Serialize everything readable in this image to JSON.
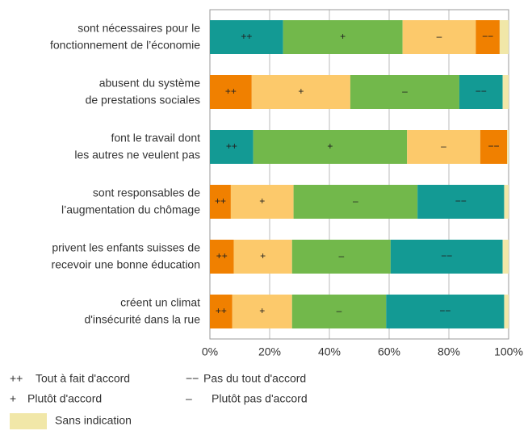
{
  "chart_data": {
    "type": "stacked-barh",
    "categories": [
      [
        "sont nécessaires pour le",
        "fonctionnement de l’économie"
      ],
      [
        "abusent du système",
        "de prestations sociales"
      ],
      [
        "font le travail dont",
        "les autres ne veulent pas"
      ],
      [
        "sont responsables de",
        "l’augmentation du chômage"
      ],
      [
        "privent les enfants suisses de",
        "recevoir une bonne éducation"
      ],
      [
        "créent un climat",
        "d'insécurité dans la rue"
      ]
    ],
    "series": [
      {
        "name": "++",
        "description": "Tout à fait d'accord",
        "values": [
          24.5,
          14,
          14.5,
          7,
          8,
          7.5
        ],
        "colors": [
          "#139a94",
          "#f08000",
          "#139a94",
          "#f08000",
          "#f08000",
          "#f08000"
        ]
      },
      {
        "name": "+",
        "description": "Plutôt d'accord",
        "values": [
          40,
          33,
          51.5,
          21,
          19.5,
          20
        ],
        "colors": [
          "#72b84b",
          "#fcc96b",
          "#72b84b",
          "#fcc96b",
          "#fcc96b",
          "#fcc96b"
        ]
      },
      {
        "name": "–",
        "description": "Plutôt pas d'accord",
        "values": [
          24.5,
          36.5,
          24.5,
          41.5,
          33,
          31.5
        ],
        "colors": [
          "#fcc96b",
          "#72b84b",
          "#fcc96b",
          "#72b84b",
          "#72b84b",
          "#72b84b"
        ]
      },
      {
        "name": "−−",
        "description": "Pas du tout d'accord",
        "values": [
          8,
          14.5,
          9,
          29,
          37.5,
          39.5
        ],
        "colors": [
          "#f08000",
          "#139a94",
          "#f08000",
          "#139a94",
          "#139a94",
          "#139a94"
        ]
      },
      {
        "name": "Sans indication",
        "values": [
          3,
          2,
          0.5,
          1.5,
          2,
          1.5
        ],
        "color": "#f1e7a8"
      }
    ],
    "xlim": [
      0,
      100
    ],
    "xticks": [
      {
        "value": 0,
        "label": "0%"
      },
      {
        "value": 20,
        "label": "20%"
      },
      {
        "value": 40,
        "label": "40%"
      },
      {
        "value": 60,
        "label": "60%"
      },
      {
        "value": 80,
        "label": "80%"
      },
      {
        "value": 100,
        "label": "100%"
      }
    ],
    "grid": true
  }
}
